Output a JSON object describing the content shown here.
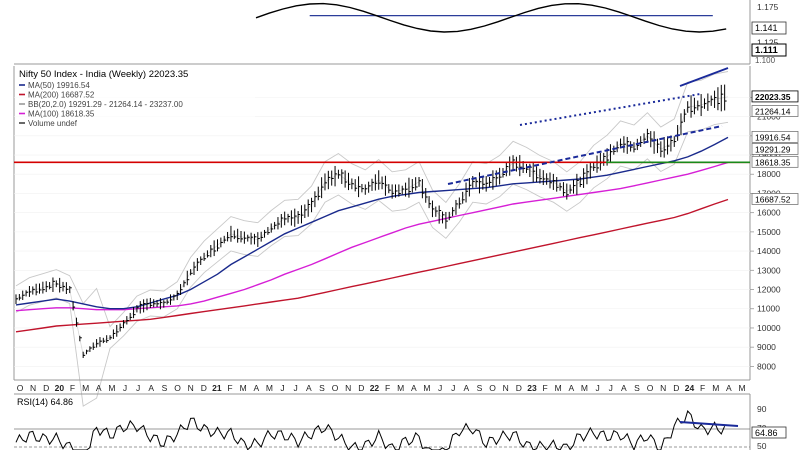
{
  "rs_panel": {
    "axis_labels": [
      "1.175",
      "1.150",
      "1.125"
    ],
    "last_value": "1.141",
    "current_value": "1.111",
    "extra_label": "1.100"
  },
  "header": {
    "title": "Nifty 50 Index - India (Weekly) 22023.35"
  },
  "legend": [
    {
      "text": "MA(50) 19916.54",
      "color": "#1a2a8c"
    },
    {
      "text": "MA(200) 16687.52",
      "color": "#c0142c"
    },
    {
      "text": "BB(20,2.0) 19291.29 - 21264.14 - 23237.00",
      "color": "#9a9a9a"
    },
    {
      "text": "MA(100) 18618.35",
      "color": "#d61fd6"
    },
    {
      "text": "Volume undef",
      "color": "#444444"
    }
  ],
  "price_axis": {
    "ticks": [
      "22000",
      "21000",
      "20000",
      "19000",
      "18000",
      "17000",
      "16000",
      "15000",
      "14000",
      "13000",
      "12000",
      "11000",
      "10000",
      "9000",
      "8000"
    ],
    "value_tags": [
      {
        "text": "22023.35",
        "value": 22023.35,
        "fill": "#ffffff",
        "bold": true
      },
      {
        "text": "21264.14",
        "value": 21264.14,
        "fill": "#ffffff",
        "bold": false
      },
      {
        "text": "19916.54",
        "value": 19916.54,
        "fill": "#ffffff",
        "bold": false
      },
      {
        "text": "19291.29",
        "value": 19291.29,
        "fill": "#ffffff",
        "bold": false
      },
      {
        "text": "18618.35",
        "value": 18618.35,
        "fill": "#ffffff",
        "bold": false
      },
      {
        "text": "16687.52",
        "value": 16687.52,
        "fill": "#ffffff",
        "bold": false
      }
    ]
  },
  "time_axis": {
    "labels": [
      "O",
      "N",
      "D",
      "20",
      "F",
      "M",
      "A",
      "M",
      "J",
      "J",
      "A",
      "S",
      "O",
      "N",
      "D",
      "21",
      "F",
      "M",
      "A",
      "M",
      "J",
      "J",
      "A",
      "S",
      "O",
      "N",
      "D",
      "22",
      "F",
      "M",
      "A",
      "M",
      "J",
      "J",
      "A",
      "S",
      "O",
      "N",
      "D",
      "23",
      "F",
      "M",
      "A",
      "M",
      "J",
      "J",
      "A",
      "S",
      "O",
      "N",
      "D",
      "24",
      "F",
      "M",
      "A",
      "M"
    ],
    "year_labels": [
      "20",
      "21",
      "22",
      "23",
      "24"
    ]
  },
  "rsi_panel": {
    "label": "RSI(14) 64.86",
    "ticks": [
      "90",
      "70",
      "50"
    ],
    "current": "64.86"
  },
  "chart_data": {
    "type": "line",
    "title": "Nifty 50 Index - India (Weekly) 22023.35",
    "frequency": "weekly",
    "x": [
      "2019-10",
      "2019-11",
      "2019-12",
      "2020-01",
      "2020-02",
      "2020-03",
      "2020-04",
      "2020-05",
      "2020-06",
      "2020-07",
      "2020-08",
      "2020-09",
      "2020-10",
      "2020-11",
      "2020-12",
      "2021-01",
      "2021-02",
      "2021-03",
      "2021-04",
      "2021-05",
      "2021-06",
      "2021-07",
      "2021-08",
      "2021-09",
      "2021-10",
      "2021-11",
      "2021-12",
      "2022-01",
      "2022-02",
      "2022-03",
      "2022-04",
      "2022-05",
      "2022-06",
      "2022-07",
      "2022-08",
      "2022-09",
      "2022-10",
      "2022-11",
      "2022-12",
      "2023-01",
      "2023-02",
      "2023-03",
      "2023-04",
      "2023-05",
      "2023-06",
      "2023-07",
      "2023-08",
      "2023-09",
      "2023-10",
      "2023-11",
      "2023-12",
      "2024-01",
      "2024-02",
      "2024-03"
    ],
    "series": [
      {
        "name": "Nifty 50 Index",
        "values": [
          11500,
          11900,
          12100,
          12300,
          12000,
          8600,
          9200,
          9500,
          10200,
          11000,
          11300,
          11250,
          11700,
          12900,
          13700,
          14300,
          14900,
          14700,
          14600,
          15200,
          15700,
          15750,
          16400,
          17600,
          18000,
          17500,
          17200,
          17700,
          17100,
          17200,
          17600,
          16200,
          15600,
          16500,
          17600,
          17500,
          17900,
          18600,
          18300,
          17900,
          17600,
          17100,
          17600,
          18400,
          18900,
          19600,
          19400,
          20000,
          19300,
          19700,
          21500,
          21600,
          21900,
          22023
        ]
      },
      {
        "name": "MA(50)",
        "values": [
          11200,
          11300,
          11400,
          11500,
          11400,
          11250,
          11100,
          11000,
          11000,
          11100,
          11300,
          11500,
          11700,
          12000,
          12400,
          12800,
          13300,
          13700,
          14100,
          14500,
          14900,
          15200,
          15500,
          15800,
          16100,
          16300,
          16500,
          16700,
          16850,
          16950,
          17050,
          17100,
          17150,
          17200,
          17250,
          17300,
          17400,
          17500,
          17550,
          17600,
          17650,
          17700,
          17750,
          17850,
          17950,
          18100,
          18250,
          18400,
          18550,
          18700,
          18900,
          19200,
          19550,
          19916
        ]
      },
      {
        "name": "MA(100)",
        "values": [
          10900,
          10950,
          11000,
          11050,
          11050,
          11000,
          10950,
          10950,
          10950,
          11000,
          11050,
          11100,
          11150,
          11250,
          11400,
          11600,
          11800,
          12000,
          12250,
          12500,
          12800,
          13050,
          13300,
          13600,
          13900,
          14200,
          14450,
          14700,
          14950,
          15200,
          15400,
          15550,
          15700,
          15850,
          16000,
          16150,
          16300,
          16450,
          16550,
          16650,
          16750,
          16850,
          16950,
          17050,
          17150,
          17250,
          17400,
          17550,
          17700,
          17850,
          18000,
          18200,
          18400,
          18618
        ]
      },
      {
        "name": "MA(200)",
        "values": [
          9800,
          9900,
          10000,
          10100,
          10150,
          10200,
          10250,
          10300,
          10350,
          10400,
          10450,
          10550,
          10650,
          10750,
          10850,
          10950,
          11050,
          11150,
          11250,
          11350,
          11450,
          11550,
          11700,
          11850,
          12000,
          12150,
          12300,
          12450,
          12600,
          12750,
          12900,
          13050,
          13200,
          13350,
          13500,
          13650,
          13800,
          13950,
          14100,
          14250,
          14400,
          14550,
          14700,
          14850,
          15000,
          15150,
          15300,
          15450,
          15600,
          15750,
          15950,
          16200,
          16450,
          16687
        ]
      }
    ],
    "bollinger": {
      "lower": 19291.29,
      "middle": 21264.14,
      "upper": 23237.0
    },
    "horizontal_lines": [
      18618.35
    ],
    "y_axis": {
      "min": 7500,
      "max": 22800,
      "scale": "linear",
      "position": "right"
    }
  }
}
